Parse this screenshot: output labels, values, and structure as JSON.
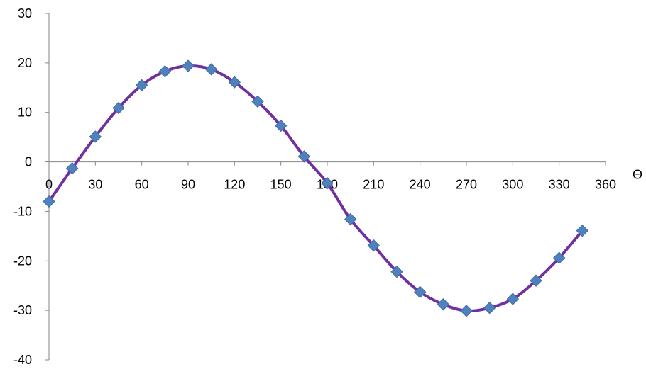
{
  "chart_data": {
    "type": "scatter",
    "title": "",
    "xlabel": "Θ",
    "ylabel": "",
    "xlim": [
      0,
      360
    ],
    "ylim": [
      -40,
      30
    ],
    "x_ticks": [
      0,
      30,
      60,
      90,
      120,
      150,
      180,
      210,
      240,
      270,
      300,
      330,
      360
    ],
    "y_ticks": [
      30,
      20,
      10,
      0,
      -10,
      -20,
      -30,
      -40
    ],
    "x_tick_labels": [
      "0",
      "30",
      "60",
      "90",
      "120",
      "150",
      "180",
      "210",
      "240",
      "270",
      "300",
      "330",
      "360"
    ],
    "y_tick_labels": [
      "30",
      "20",
      "10",
      "0",
      "-10",
      "-20",
      "-30",
      "-40"
    ],
    "grid": false,
    "legend": "none",
    "series": [
      {
        "marker": "diamond",
        "line": "smooth",
        "line_color": "#7030A0",
        "marker_color": "#4F81BD",
        "x": [
          0,
          15,
          30,
          45,
          60,
          75,
          90,
          105,
          120,
          135,
          150,
          165,
          180,
          195,
          210,
          225,
          240,
          255,
          270,
          285,
          300,
          315,
          330,
          345
        ],
        "y": [
          -8,
          -1.3,
          5.1,
          10.9,
          15.5,
          18.3,
          19.4,
          18.7,
          16.1,
          12.2,
          7.3,
          1.1,
          -4.3,
          -11.6,
          -16.9,
          -22.2,
          -26.3,
          -28.8,
          -30.1,
          -29.5,
          -27.7,
          -24.0,
          -19.4,
          -13.9
        ]
      }
    ]
  }
}
